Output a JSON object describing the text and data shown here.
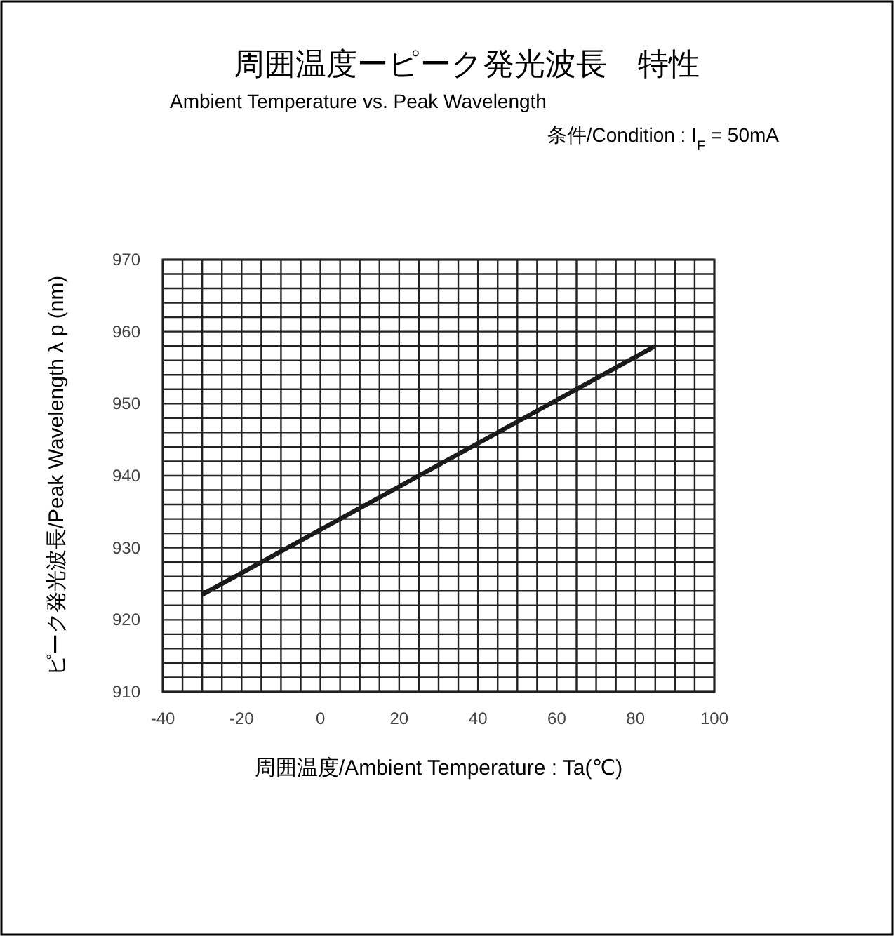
{
  "chart_data": {
    "type": "line",
    "title": "周囲温度ーピーク発光波長　特性",
    "subtitle": "Ambient Temperature vs. Peak Wavelength",
    "annotations": [
      "条件/Condition : I$_{F}$ = 50mA"
    ],
    "xlabel": "周囲温度/Ambient Temperature : Ta(℃)",
    "ylabel": "ピーク発光波長/Peak Wavelength λ p (nm)",
    "series": [
      {
        "color": "#1a1a1a",
        "x": [
          -30,
          85
        ],
        "values": [
          923.5,
          958
        ]
      }
    ],
    "xlim": [
      -40,
      100
    ],
    "ylim": [
      910,
      970
    ],
    "grid": true,
    "xticks": [
      -40,
      {
        "value": -35,
        "label": null
      },
      -20,
      {
        "value": -25,
        "label": null
      },
      {
        "value": -30,
        "label": null
      },
      {
        "value": -15,
        "label": null
      },
      {
        "value": -10,
        "label": null
      },
      {
        "value": -5,
        "label": null
      },
      0,
      {
        "value": 5,
        "label": null
      },
      {
        "value": 10,
        "label": null
      },
      {
        "value": 15,
        "label": null
      },
      20,
      {
        "value": 25,
        "label": null
      },
      {
        "value": 30,
        "label": null
      },
      {
        "value": 35,
        "label": null
      },
      40,
      {
        "value": 45,
        "label": null
      },
      {
        "value": 50,
        "label": null
      },
      {
        "value": 55,
        "label": null
      },
      60,
      {
        "value": 65,
        "label": null
      },
      {
        "value": 70,
        "label": null
      },
      {
        "value": 75,
        "label": null
      },
      80,
      {
        "value": 85,
        "label": null
      },
      {
        "value": 90,
        "label": null
      },
      {
        "value": 95,
        "label": null
      },
      100
    ],
    "yticks": [
      910,
      {
        "value": 912,
        "label": null
      },
      {
        "value": 914,
        "label": null
      },
      {
        "value": 916,
        "label": null
      },
      {
        "value": 918,
        "label": null
      },
      920,
      {
        "value": 922,
        "label": null
      },
      {
        "value": 924,
        "label": null
      },
      {
        "value": 926,
        "label": null
      },
      {
        "value": 928,
        "label": null
      },
      930,
      {
        "value": 932,
        "label": null
      },
      {
        "value": 934,
        "label": null
      },
      {
        "value": 936,
        "label": null
      },
      {
        "value": 938,
        "label": null
      },
      940,
      {
        "value": 942,
        "label": null
      },
      {
        "value": 944,
        "label": null
      },
      {
        "value": 946,
        "label": null
      },
      {
        "value": 948,
        "label": null
      },
      950,
      {
        "value": 952,
        "label": null
      },
      {
        "value": 954,
        "label": null
      },
      {
        "value": 956,
        "label": null
      },
      {
        "value": 958,
        "label": null
      },
      960,
      {
        "value": 962,
        "label": null
      },
      {
        "value": 964,
        "label": null
      },
      {
        "value": 966,
        "label": null
      },
      {
        "value": 968,
        "label": null
      },
      970
    ]
  }
}
